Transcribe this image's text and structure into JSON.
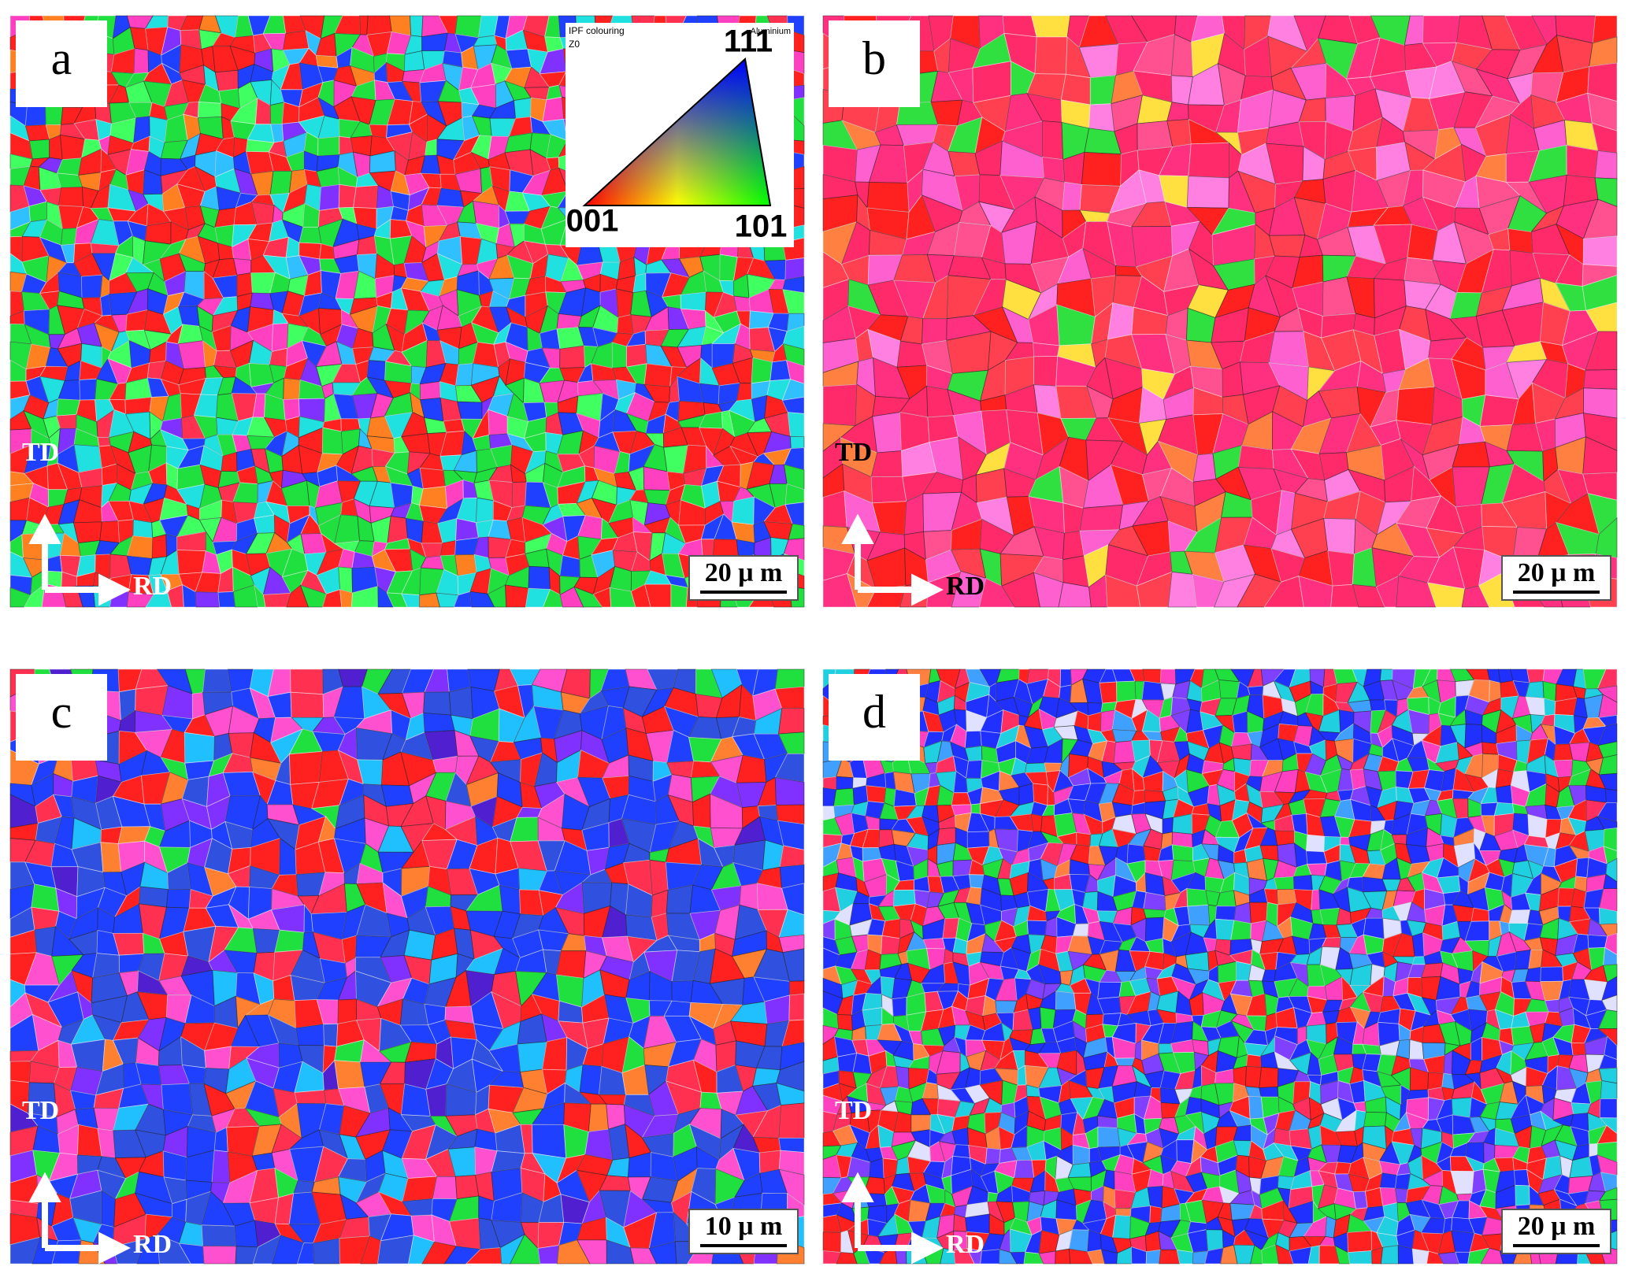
{
  "panels": [
    {
      "label": "a",
      "td": "TD",
      "rd": "RD",
      "scale_bar": "20 μ m",
      "text_color": "#ffffff"
    },
    {
      "label": "b",
      "td": "TD",
      "rd": "RD",
      "scale_bar": "20 μ m",
      "text_color": "#000000"
    },
    {
      "label": "c",
      "td": "TD",
      "rd": "RD",
      "scale_bar": "10 μ m",
      "text_color": "#ffffff"
    },
    {
      "label": "d",
      "td": "TD",
      "rd": "RD",
      "scale_bar": "20 μ m",
      "text_color": "#ffffff"
    }
  ],
  "inset": {
    "title": "IPF colouring",
    "axis": "Z0",
    "material": "Aluminium",
    "pole_111": "111",
    "pole_001": "001",
    "pole_101": "101"
  }
}
